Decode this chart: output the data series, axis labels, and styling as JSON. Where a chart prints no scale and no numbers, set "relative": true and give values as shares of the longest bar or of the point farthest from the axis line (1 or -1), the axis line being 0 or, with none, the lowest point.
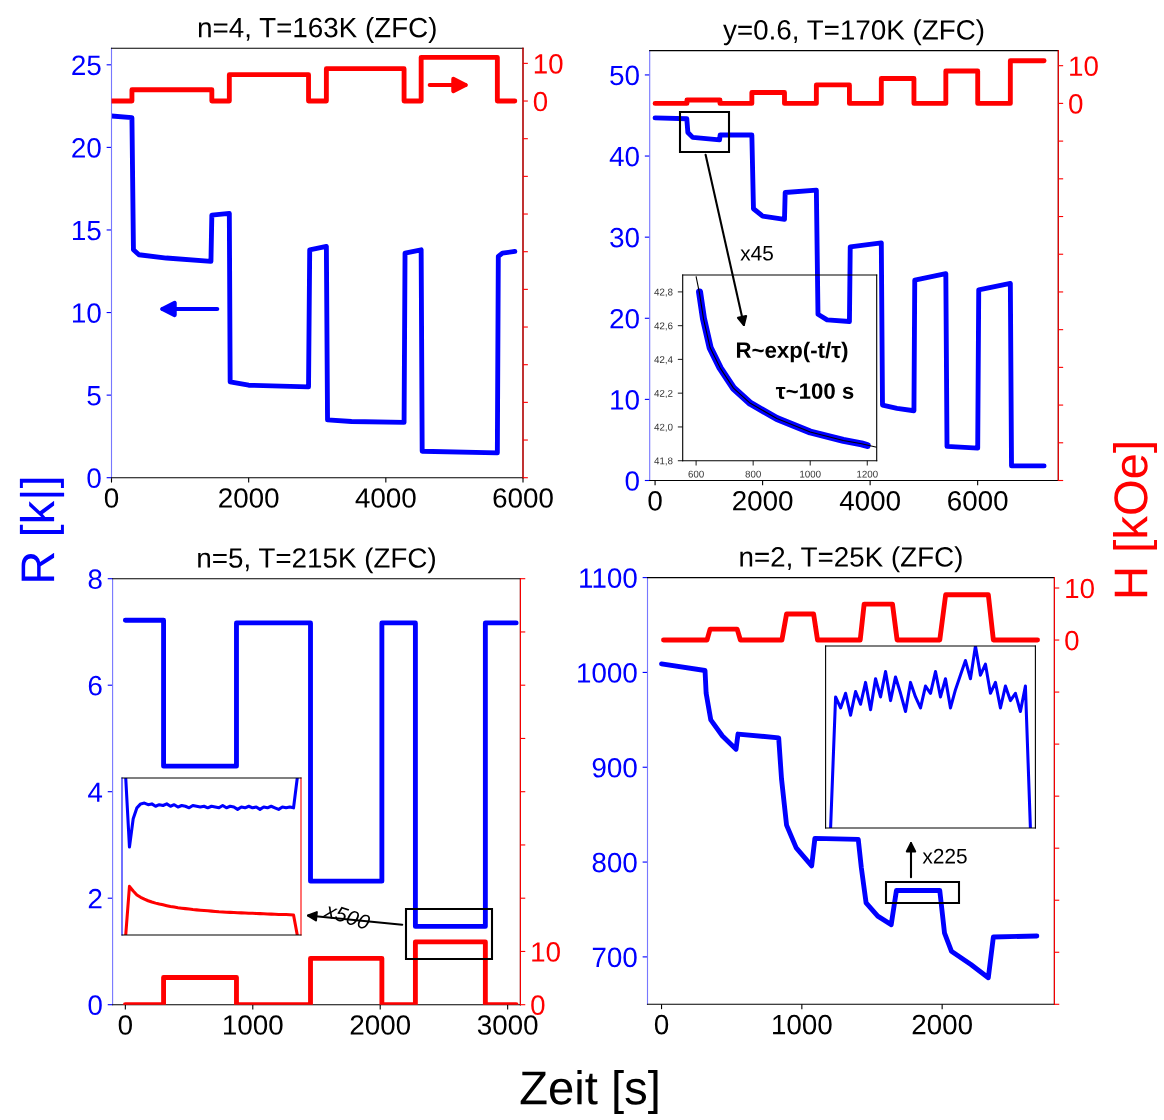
{
  "chart_data": [
    {
      "type": "line",
      "title": "n=4, T=163K (ZFC)",
      "ylabel": "R [k|]",
      "xlim": [
        0,
        6000
      ],
      "xticks": [
        0,
        2000,
        4000,
        6000
      ],
      "ylim": [
        0,
        26
      ],
      "yticks": [
        0,
        5,
        10,
        15,
        20,
        25
      ],
      "y2lim": [
        -100,
        14
      ],
      "y2ticks": [
        10,
        0,
        {
          "value": -10,
          "label": null
        },
        {
          "value": -20,
          "label": null
        },
        {
          "value": -30,
          "label": null
        },
        {
          "value": -40,
          "label": null
        },
        {
          "value": -50,
          "label": null
        },
        {
          "value": -60,
          "label": null
        },
        {
          "value": -70,
          "label": null
        },
        {
          "value": -80,
          "label": null
        },
        {
          "value": -90,
          "label": null
        },
        {
          "value": -100,
          "label": null
        }
      ],
      "grid": false,
      "legend": false,
      "series": [
        {
          "color": "#0000ff",
          "x": [
            0,
            298,
            320,
            400,
            800,
            1450,
            1463,
            1718,
            1730,
            2000,
            2873,
            2890,
            3133,
            3150,
            3500,
            4266,
            4280,
            4515,
            4530,
            5626,
            5640,
            5700,
            5881
          ],
          "values": [
            21.9,
            21.8,
            13.8,
            13.5,
            13.3,
            13.1,
            15.9,
            16.0,
            5.8,
            5.6,
            5.5,
            13.8,
            14.0,
            3.5,
            3.4,
            3.35,
            13.6,
            13.8,
            1.6,
            1.5,
            13.4,
            13.6,
            13.7
          ]
        },
        {
          "color": "#ff0000",
          "axis": "y2",
          "x": [
            0,
            298,
            298,
            1463,
            1463,
            1718,
            1718,
            2873,
            2873,
            3133,
            3133,
            4266,
            4266,
            4515,
            4515,
            5626,
            5626,
            5881
          ],
          "values": [
            0,
            0,
            3,
            3,
            0,
            0,
            7,
            7,
            0,
            0,
            8.6,
            8.6,
            0,
            0,
            11.6,
            11.6,
            0,
            0
          ]
        }
      ]
    },
    {
      "type": "line",
      "title": "y=0.6, T=170K (ZFC)",
      "y2label": "H [kOe]",
      "xlim": [
        -100,
        7500
      ],
      "xticks": [
        0,
        2000,
        4000,
        6000
      ],
      "ylim": [
        0,
        53
      ],
      "yticks": [
        0,
        10,
        20,
        30,
        40,
        50
      ],
      "y2lim": [
        -100,
        14
      ],
      "y2ticks": [
        10,
        0,
        {
          "value": -10,
          "label": null
        },
        {
          "value": -20,
          "label": null
        },
        {
          "value": -30,
          "label": null
        },
        {
          "value": -40,
          "label": null
        },
        {
          "value": -50,
          "label": null
        },
        {
          "value": -60,
          "label": null
        },
        {
          "value": -70,
          "label": null
        },
        {
          "value": -80,
          "label": null
        },
        {
          "value": -90,
          "label": null
        },
        {
          "value": -100,
          "label": null
        }
      ],
      "grid": false,
      "legend": false,
      "annotations": [
        "x45"
      ],
      "series": [
        {
          "color": "#0000ff",
          "x": [
            0,
            590,
            610,
            700,
            1200,
            1210,
            1800,
            1830,
            2000,
            2407,
            2420,
            3000,
            3030,
            3200,
            3615,
            3630,
            4208,
            4230,
            4500,
            4815,
            4830,
            5408,
            5430,
            6001,
            6020,
            6608,
            6630,
            7236
          ],
          "values": [
            44.7,
            44.6,
            42.9,
            42.3,
            42.0,
            42.6,
            42.6,
            33.5,
            32.6,
            32.2,
            35.5,
            35.8,
            20.5,
            19.8,
            19.6,
            28.8,
            29.3,
            9.3,
            8.9,
            8.6,
            24.7,
            25.5,
            4.2,
            4.0,
            23.5,
            24.3,
            1.8,
            1.8
          ]
        },
        {
          "color": "#ff0000",
          "axis": "y2",
          "x": [
            0,
            593,
            593,
            1207,
            1207,
            1800,
            1800,
            2407,
            2407,
            3000,
            3000,
            3615,
            3615,
            4208,
            4208,
            4815,
            4815,
            5408,
            5408,
            6001,
            6001,
            6608,
            6608,
            7236
          ],
          "values": [
            0,
            0,
            0.9,
            0.9,
            0,
            0,
            2.9,
            2.9,
            0,
            0,
            4.9,
            4.9,
            0,
            0,
            6.6,
            6.6,
            0,
            0,
            8.6,
            8.6,
            0,
            0,
            11.3,
            11.3
          ]
        }
      ]
    },
    {
      "type": "line",
      "title": "n=5, T=215K (ZFC)",
      "xlabel": "Zeit [s]",
      "xlim": [
        -100,
        3100
      ],
      "xticks": [
        0,
        1000,
        2000,
        3000
      ],
      "ylim": [
        0,
        8
      ],
      "yticks": [
        0,
        2,
        4,
        6,
        8
      ],
      "y2lim": [
        0,
        80
      ],
      "y2ticks": [
        0,
        10,
        {
          "value": 20,
          "label": null
        },
        {
          "value": 30,
          "label": null
        },
        {
          "value": 40,
          "label": null
        },
        {
          "value": 50,
          "label": null
        },
        {
          "value": 60,
          "label": null
        },
        {
          "value": 70,
          "label": null
        },
        {
          "value": 80,
          "label": null
        }
      ],
      "grid": false,
      "legend": false,
      "annotations": [
        "x500"
      ],
      "series": [
        {
          "color": "#0000ff",
          "x": [
            0,
            300,
            300,
            872,
            872,
            1453,
            1453,
            2013,
            2013,
            2276,
            2276,
            2825,
            2825,
            3067
          ],
          "values": [
            7.22,
            7.22,
            4.48,
            4.48,
            7.17,
            7.17,
            2.32,
            2.32,
            7.17,
            7.17,
            1.47,
            1.47,
            7.17,
            7.17
          ]
        },
        {
          "color": "#ff0000",
          "axis": "y2",
          "x": [
            0,
            300,
            300,
            872,
            872,
            1453,
            1453,
            2013,
            2013,
            2276,
            2276,
            2825,
            2825,
            3067
          ],
          "values": [
            0,
            0,
            5.1,
            5.1,
            0,
            0,
            8.7,
            8.7,
            0,
            0,
            11.8,
            11.8,
            0,
            0
          ]
        }
      ]
    },
    {
      "type": "line",
      "title": "n=2, T=25K (ZFC)",
      "xlim": [
        -100,
        2800
      ],
      "xticks": [
        0,
        1000,
        2000
      ],
      "ylim": [
        650,
        1100
      ],
      "yticks": [
        700,
        800,
        900,
        1000,
        1100
      ],
      "y2lim": [
        -70,
        12
      ],
      "y2ticks": [
        10,
        0,
        {
          "value": -10,
          "label": null
        },
        {
          "value": -20,
          "label": null
        },
        {
          "value": -30,
          "label": null
        },
        {
          "value": -40,
          "label": null
        },
        {
          "value": -50,
          "label": null
        },
        {
          "value": -60,
          "label": null
        },
        {
          "value": -70,
          "label": null
        }
      ],
      "grid": false,
      "legend": false,
      "annotations": [
        "x225"
      ],
      "series": [
        {
          "color": "#0000ff",
          "x": [
            0,
            310,
            318,
            351,
            434,
            531,
            545,
            835,
            855,
            891,
            960,
            1070,
            1093,
            1402,
            1424,
            1458,
            1541,
            1637,
            1674,
            1983,
            2017,
            2066,
            2205,
            2329,
            2365,
            2675
          ],
          "values": [
            1009,
            1002,
            978,
            950,
            933,
            919,
            935,
            931,
            888,
            839,
            815,
            796,
            825,
            824,
            794,
            757,
            743,
            734,
            770,
            770,
            725,
            706,
            692,
            678,
            721,
            722
          ]
        },
        {
          "color": "#ff0000",
          "axis": "y2",
          "x": [
            14,
            324,
            346,
            539,
            562,
            858,
            891,
            1084,
            1112,
            1416,
            1444,
            1646,
            1679,
            1983,
            2025,
            2329,
            2365,
            2680
          ],
          "values": [
            0,
            0,
            2.1,
            2.1,
            0,
            0,
            5.0,
            5.0,
            0,
            0,
            6.9,
            6.9,
            0,
            0,
            8.7,
            8.7,
            0,
            0
          ]
        }
      ]
    },
    {
      "type": "line",
      "xlim": [
        553,
        1233
      ],
      "xticks": [
        600,
        800,
        1000,
        1200
      ],
      "ylim": [
        41.8,
        42.9
      ],
      "yticks": [
        {
          "value": 41.8,
          "label": "41,8"
        },
        {
          "value": 42.0,
          "label": "42,0"
        },
        {
          "value": 42.2,
          "label": "42,2"
        },
        {
          "value": 42.4,
          "label": "42,4"
        },
        {
          "value": 42.6,
          "label": "42,6"
        },
        {
          "value": 42.8,
          "label": "42,8"
        }
      ],
      "grid": false,
      "legend": false,
      "annotations": [
        "R~exp(-t/τ)",
        "τ~100 s"
      ],
      "series": [
        {
          "color": "#0000ff",
          "x": [
            612,
            626,
            649,
            684,
            731,
            790,
            883,
            1000,
            1116,
            1180,
            1200
          ],
          "values": [
            42.8,
            42.64,
            42.47,
            42.35,
            42.23,
            42.14,
            42.05,
            41.97,
            41.92,
            41.9,
            41.89
          ]
        },
        {
          "color": "#000000",
          "x": [
            600,
            611,
            626,
            649,
            684,
            731,
            790,
            883,
            1000,
            1116,
            1180,
            1233
          ],
          "values": [
            42.89,
            42.8,
            42.64,
            42.47,
            42.35,
            42.23,
            42.14,
            42.05,
            41.97,
            41.92,
            41.9,
            41.88
          ]
        }
      ]
    },
    {
      "type": "line",
      "relative": true,
      "grid": false,
      "legend": false,
      "categories": [
        null,
        null,
        null,
        null,
        null,
        null,
        null,
        null,
        null,
        null,
        null,
        null,
        null,
        null,
        null,
        null,
        null,
        null,
        null,
        null,
        null,
        null,
        null,
        null,
        null,
        null,
        null,
        null,
        null,
        null,
        null,
        null,
        null,
        null,
        null,
        null,
        null,
        null,
        null,
        null,
        null,
        null,
        null,
        null,
        null,
        null,
        null
      ],
      "series": [
        {
          "color": "#0000ff",
          "values": [
            1.0,
            0.56,
            0.74,
            0.81,
            0.835,
            0.84,
            0.83,
            0.835,
            0.82,
            0.83,
            0.825,
            0.835,
            0.82,
            0.83,
            0.815,
            0.825,
            0.82,
            0.81,
            0.825,
            0.82,
            0.815,
            0.82,
            0.81,
            0.82,
            0.815,
            0.81,
            0.825,
            0.81,
            0.82,
            0.815,
            0.8,
            0.815,
            0.81,
            0.82,
            0.81,
            0.815,
            0.8,
            0.815,
            0.81,
            0.82,
            0.81,
            0.8,
            0.815,
            0.81,
            0.815,
            0.81,
            1.0
          ]
        },
        {
          "color": "#ff0000",
          "values": [
            0.0,
            0.31,
            0.28,
            0.255,
            0.24,
            0.228,
            0.218,
            0.21,
            0.203,
            0.197,
            0.192,
            0.187,
            0.182,
            0.178,
            0.174,
            0.171,
            0.168,
            0.165,
            0.162,
            0.16,
            0.158,
            0.156,
            0.154,
            0.152,
            0.15,
            0.148,
            0.147,
            0.145,
            0.144,
            0.143,
            0.142,
            0.141,
            0.14,
            0.139,
            0.138,
            0.137,
            0.136,
            0.135,
            0.134,
            0.133,
            0.132,
            0.131,
            0.13,
            0.13,
            0.129,
            0.128,
            0.0
          ]
        }
      ]
    },
    {
      "type": "line",
      "relative": true,
      "grid": false,
      "legend": false,
      "categories": [
        null,
        null,
        null,
        null,
        null,
        null,
        null,
        null,
        null,
        null,
        null,
        null,
        null,
        null,
        null,
        null,
        null,
        null,
        null,
        null,
        null,
        null,
        null,
        null,
        null,
        null,
        null,
        null,
        null,
        null,
        null,
        null,
        null,
        null,
        null,
        null,
        null,
        null,
        null,
        null,
        null
      ],
      "series": [
        {
          "color": "#0000ff",
          "values": [
            0,
            0.72,
            0.66,
            0.74,
            0.62,
            0.75,
            0.68,
            0.8,
            0.65,
            0.82,
            0.72,
            0.86,
            0.7,
            0.83,
            0.74,
            0.64,
            0.8,
            0.72,
            0.66,
            0.78,
            0.74,
            0.86,
            0.72,
            0.82,
            0.66,
            0.76,
            0.84,
            0.92,
            0.82,
            1.0,
            0.84,
            0.9,
            0.74,
            0.8,
            0.66,
            0.78,
            0.7,
            0.74,
            0.64,
            0.78,
            0
          ]
        }
      ]
    }
  ]
}
